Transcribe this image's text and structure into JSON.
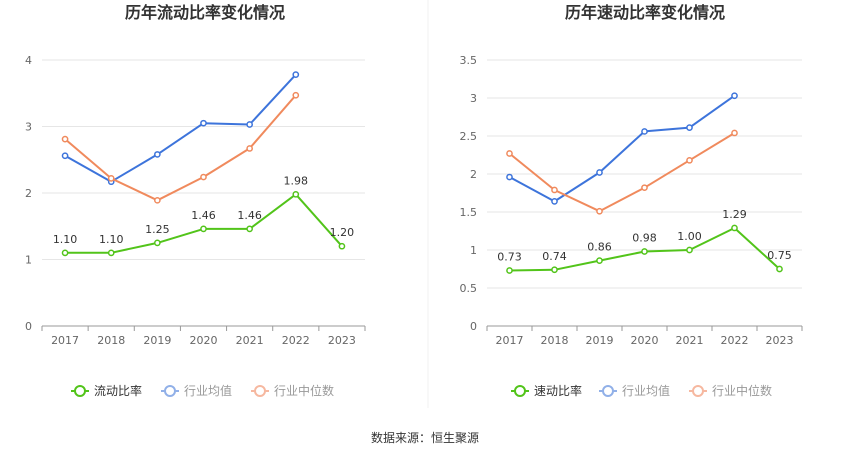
{
  "source_label": "数据来源：恒生聚源",
  "colors": {
    "primary": "#52c41a",
    "industry_avg": "#3d74db",
    "industry_median": "#f08a5d",
    "legend_primary": "#52c41a",
    "legend_avg": "#91b0e8",
    "legend_median": "#f6b8a0"
  },
  "chart_data": [
    {
      "type": "line",
      "title": "历年流动比率变化情况",
      "categories": [
        "2017",
        "2018",
        "2019",
        "2020",
        "2021",
        "2022",
        "2023"
      ],
      "yticks": [
        "0",
        "1",
        "2",
        "3",
        "4"
      ],
      "ylim": [
        0,
        4
      ],
      "grid": true,
      "legend_position": "bottom",
      "series": [
        {
          "name": "流动比率",
          "values": [
            1.1,
            1.1,
            1.25,
            1.46,
            1.46,
            1.98,
            1.2
          ],
          "labels": [
            "1.10",
            "1.10",
            "1.25",
            "1.46",
            "1.46",
            "1.98",
            "1.20"
          ]
        },
        {
          "name": "行业均值",
          "values": [
            2.56,
            2.17,
            2.58,
            3.05,
            3.03,
            3.78,
            null
          ]
        },
        {
          "name": "行业中位数",
          "values": [
            2.81,
            2.22,
            1.89,
            2.24,
            2.67,
            3.47,
            null
          ]
        }
      ]
    },
    {
      "type": "line",
      "title": "历年速动比率变化情况",
      "categories": [
        "2017",
        "2018",
        "2019",
        "2020",
        "2021",
        "2022",
        "2023"
      ],
      "yticks": [
        "0",
        "0.5",
        "1",
        "1.5",
        "2",
        "2.5",
        "3",
        "3.5"
      ],
      "ylim": [
        0,
        3.5
      ],
      "grid": true,
      "legend_position": "bottom",
      "series": [
        {
          "name": "速动比率",
          "values": [
            0.73,
            0.74,
            0.86,
            0.98,
            1.0,
            1.29,
            0.75
          ],
          "labels": [
            "0.73",
            "0.74",
            "0.86",
            "0.98",
            "1.00",
            "1.29",
            "0.75"
          ]
        },
        {
          "name": "行业均值",
          "values": [
            1.96,
            1.64,
            2.02,
            2.56,
            2.61,
            3.03,
            null
          ]
        },
        {
          "name": "行业中位数",
          "values": [
            2.27,
            1.79,
            1.51,
            1.82,
            2.18,
            2.54,
            null
          ]
        }
      ]
    }
  ]
}
